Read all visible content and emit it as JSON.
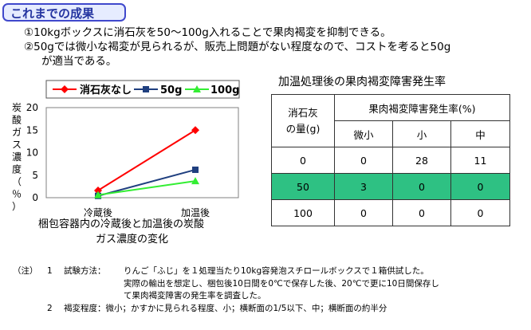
{
  "header": {
    "title": "これまでの成果"
  },
  "findings": [
    "①10kgボックスに消石灰を50～100g入れることで果肉褐変を抑制できる。",
    "②50gでは微小な褐変が見られるが、販売上問題がない程度なので、コストを考ると50g",
    "が適当である。"
  ],
  "chart_data": {
    "type": "line",
    "categories": [
      "冷蔵後",
      "加温後"
    ],
    "series": [
      {
        "name": "消石灰なし",
        "values": [
          1.6,
          15.0
        ],
        "color": "#ff0000",
        "marker": "diamond"
      },
      {
        "name": "50g",
        "values": [
          0.4,
          6.2
        ],
        "color": "#1f3f7f",
        "marker": "square"
      },
      {
        "name": "100g",
        "values": [
          0.6,
          3.7
        ],
        "color": "#33ee33",
        "marker": "triangle"
      }
    ],
    "ylabel": "炭酸ガス濃度（％）",
    "ylim": [
      0,
      20
    ],
    "yticks": [
      0,
      5,
      10,
      15,
      20
    ],
    "grid": false,
    "legend_position": "top",
    "caption": [
      "梱包容器内の冷蔵後と加温後の炭酸",
      "ガス濃度の変化"
    ]
  },
  "table": {
    "title": "加温処理後の果肉褐変障害発生率",
    "header": {
      "amount_label_1": "消石灰",
      "amount_label_2": "の量(g)",
      "rate_label": "果肉褐変障害発生率(%)"
    },
    "subheaders": [
      "微小",
      "小",
      "中"
    ],
    "rows": [
      {
        "amount": "0",
        "values": [
          "0",
          "28",
          "11"
        ]
      },
      {
        "amount": "50",
        "values": [
          "3",
          "0",
          "0"
        ]
      },
      {
        "amount": "100",
        "values": [
          "0",
          "0",
          "0"
        ]
      }
    ],
    "highlight_color": "#2ec183"
  },
  "notes": {
    "label": "（注）",
    "items": [
      {
        "num": "1",
        "title": "試験方法：",
        "lines": [
          "りんご「ふじ」を１処理当たり10kg容発泡スチロールボックスで１箱供試した。",
          "実際の輸出を想定し、梱包後10日間を0℃で保存した後、20℃で更に10日間保存し",
          "て果肉褐変障害の発生率を調査した。"
        ]
      },
      {
        "num": "2",
        "text": "褐変程度：微小；かすかに見られる程度、小；横断面の1/5以下、中；横断面の約半分"
      }
    ]
  }
}
